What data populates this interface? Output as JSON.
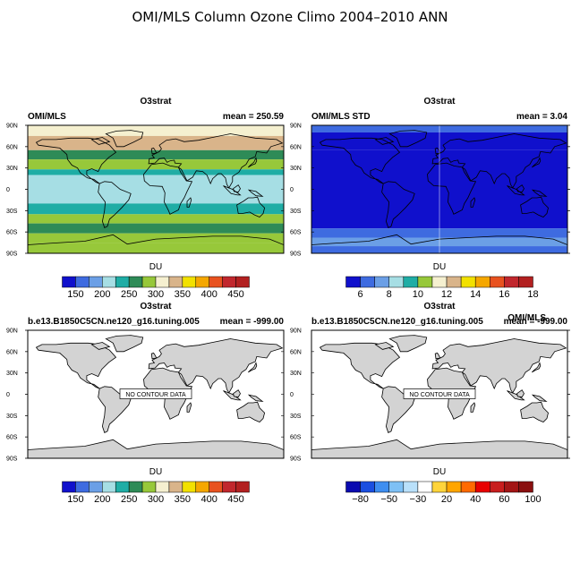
{
  "figure_title": "OMI/MLS Column Ozone Climo 2004–2010 ANN",
  "lat_ticks": [
    "90N",
    "60N",
    "30N",
    "0",
    "30S",
    "60S",
    "90S"
  ],
  "chart_data": [
    {
      "type": "heatmap",
      "title": "O3strat",
      "left_label": "OMI/MLS",
      "right_label": "mean = 250.59",
      "units": "DU",
      "colorbar_labels": [
        "150",
        "200",
        "250",
        "300",
        "350",
        "400",
        "450"
      ],
      "colors": [
        "#1010cc",
        "#3e6be0",
        "#6b9fe6",
        "#a6dee4",
        "#1fada5",
        "#2e8b57",
        "#97c83a",
        "#f5f0d0",
        "#d9b48a",
        "#f2e100",
        "#f5a700",
        "#e8521f",
        "#c1272d",
        "#b22020"
      ],
      "bands": [
        {
          "lat_from": 90,
          "lat_to": 75,
          "color_index": 7
        },
        {
          "lat_from": 75,
          "lat_to": 55,
          "color_index": 8
        },
        {
          "lat_from": 55,
          "lat_to": 42,
          "color_index": 5
        },
        {
          "lat_from": 42,
          "lat_to": 28,
          "color_index": 6
        },
        {
          "lat_from": 28,
          "lat_to": 20,
          "color_index": 4
        },
        {
          "lat_from": 20,
          "lat_to": -20,
          "color_index": 3
        },
        {
          "lat_from": -20,
          "lat_to": -35,
          "color_index": 4
        },
        {
          "lat_from": -35,
          "lat_to": -48,
          "color_index": 6
        },
        {
          "lat_from": -48,
          "lat_to": -62,
          "color_index": 5
        },
        {
          "lat_from": -62,
          "lat_to": -75,
          "color_index": 6
        },
        {
          "lat_from": -75,
          "lat_to": -90,
          "color_index": 6
        }
      ],
      "no_data": false
    },
    {
      "type": "heatmap",
      "title": "O3strat",
      "left_label": "OMI/MLS STD",
      "right_label": "mean =   3.04",
      "units": "DU",
      "colorbar_labels": [
        "6",
        "8",
        "10",
        "12",
        "14",
        "16",
        "18"
      ],
      "colors": [
        "#1010cc",
        "#3e6be0",
        "#6b9fe6",
        "#a6dee4",
        "#1fada5",
        "#97c83a",
        "#f5f0d0",
        "#d9b48a",
        "#f2e100",
        "#f5a700",
        "#e8521f",
        "#c1272d",
        "#b22020"
      ],
      "bands": [
        {
          "lat_from": 90,
          "lat_to": 80,
          "color_index": 1
        },
        {
          "lat_from": 80,
          "lat_to": 55,
          "color_index": 0
        },
        {
          "lat_from": 55,
          "lat_to": -55,
          "color_index": 0
        },
        {
          "lat_from": -55,
          "lat_to": -68,
          "color_index": 1
        },
        {
          "lat_from": -68,
          "lat_to": -80,
          "color_index": 2
        },
        {
          "lat_from": -80,
          "lat_to": -90,
          "color_index": 1
        }
      ],
      "no_data": false
    },
    {
      "type": "heatmap",
      "title": "O3strat",
      "left_label": "b.e13.B1850C5CN.ne120_g16.tuning.005",
      "right_label": "mean = -999.00",
      "units": "DU",
      "no_data_text": "NO CONTOUR DATA",
      "colorbar_labels": [
        "150",
        "200",
        "250",
        "300",
        "350",
        "400",
        "450"
      ],
      "colors": [
        "#1010cc",
        "#3e6be0",
        "#6b9fe6",
        "#a6dee4",
        "#1fada5",
        "#2e8b57",
        "#97c83a",
        "#f5f0d0",
        "#d9b48a",
        "#f2e100",
        "#f5a700",
        "#e8521f",
        "#c1272d",
        "#b22020"
      ],
      "no_data": true
    },
    {
      "type": "heatmap",
      "title": "O3strat",
      "left_label": "b.e13.B1850C5CN.ne120_g16.tuning.005",
      "overlay_label": "OMI/MLS",
      "right_label": "mean = -999.00",
      "units": "DU",
      "no_data_text": "NO CONTOUR DATA",
      "colorbar_labels": [
        "−80",
        "−50",
        "−30",
        "20",
        "40",
        "60",
        "100"
      ],
      "colors": [
        "#0b0bb0",
        "#1a4fe0",
        "#3e8ef0",
        "#7ec0f5",
        "#b9e0fa",
        "#ffffff",
        "#ffd43b",
        "#ffa500",
        "#ff6a00",
        "#e80000",
        "#c81e1e",
        "#a31515",
        "#8a1010"
      ],
      "no_data": true
    }
  ]
}
